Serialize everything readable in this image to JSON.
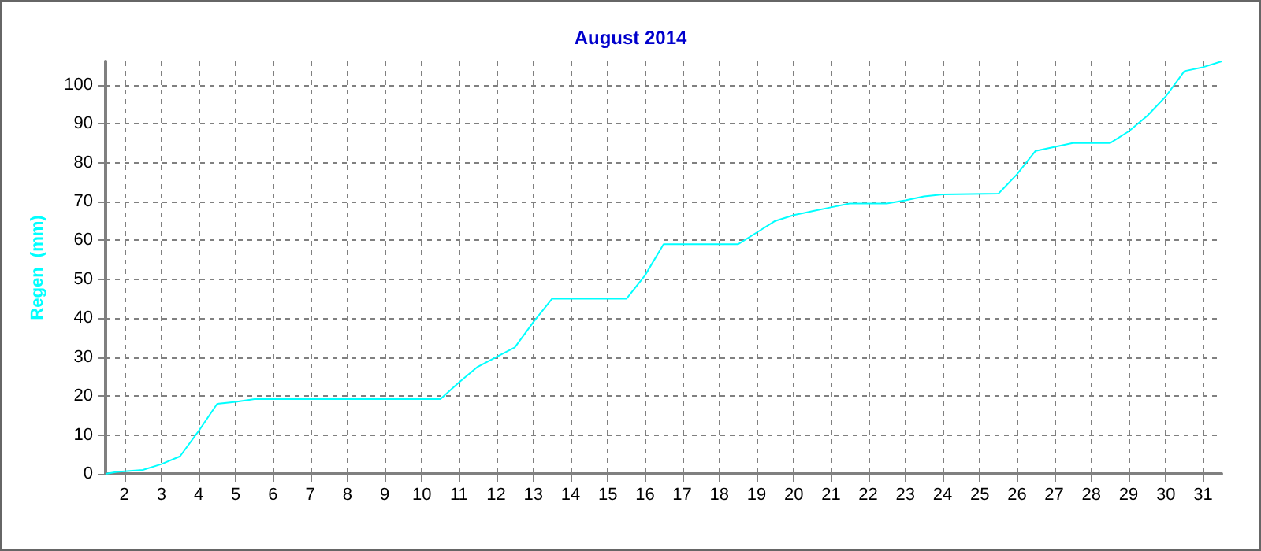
{
  "chart_data": {
    "type": "line",
    "title": "August 2014",
    "ylabel": "Regen  (mm)",
    "x": [
      1.5,
      1.8,
      2.5,
      3,
      3.5,
      4,
      4.5,
      5,
      5.5,
      10.5,
      11,
      11.5,
      12,
      12.5,
      13,
      13.5,
      15.5,
      16,
      16.5,
      18.5,
      19,
      19.5,
      20,
      20.5,
      21,
      21.5,
      22.5,
      23,
      23.5,
      24,
      25.5,
      26,
      26.5,
      27,
      27.5,
      28.5,
      29,
      29.5,
      30,
      30.5,
      31,
      31.5
    ],
    "series": [
      {
        "color": "#00ffff",
        "values": [
          0,
          0.5,
          1,
          2.5,
          4.5,
          11,
          18,
          18.5,
          19.2,
          19.2,
          23.5,
          27.5,
          30,
          32.5,
          39,
          45,
          45,
          51,
          59,
          59,
          62,
          65,
          66.5,
          67.5,
          68.5,
          69.5,
          69.5,
          70.3,
          71.3,
          71.8,
          72,
          77,
          83,
          84,
          85,
          85,
          88,
          92,
          97,
          103.5,
          104.5,
          106
        ]
      }
    ],
    "xlim": [
      1.5,
      31.5
    ],
    "xticks": [
      2,
      3,
      4,
      5,
      6,
      7,
      8,
      9,
      10,
      11,
      12,
      13,
      14,
      15,
      16,
      17,
      18,
      19,
      20,
      21,
      22,
      23,
      24,
      25,
      26,
      27,
      28,
      29,
      30,
      31
    ],
    "ylim": [
      0,
      106
    ],
    "yticks": [
      0,
      10,
      20,
      30,
      40,
      50,
      60,
      70,
      80,
      90,
      100
    ],
    "grid": true,
    "marker": "none",
    "line_style": "solid"
  }
}
